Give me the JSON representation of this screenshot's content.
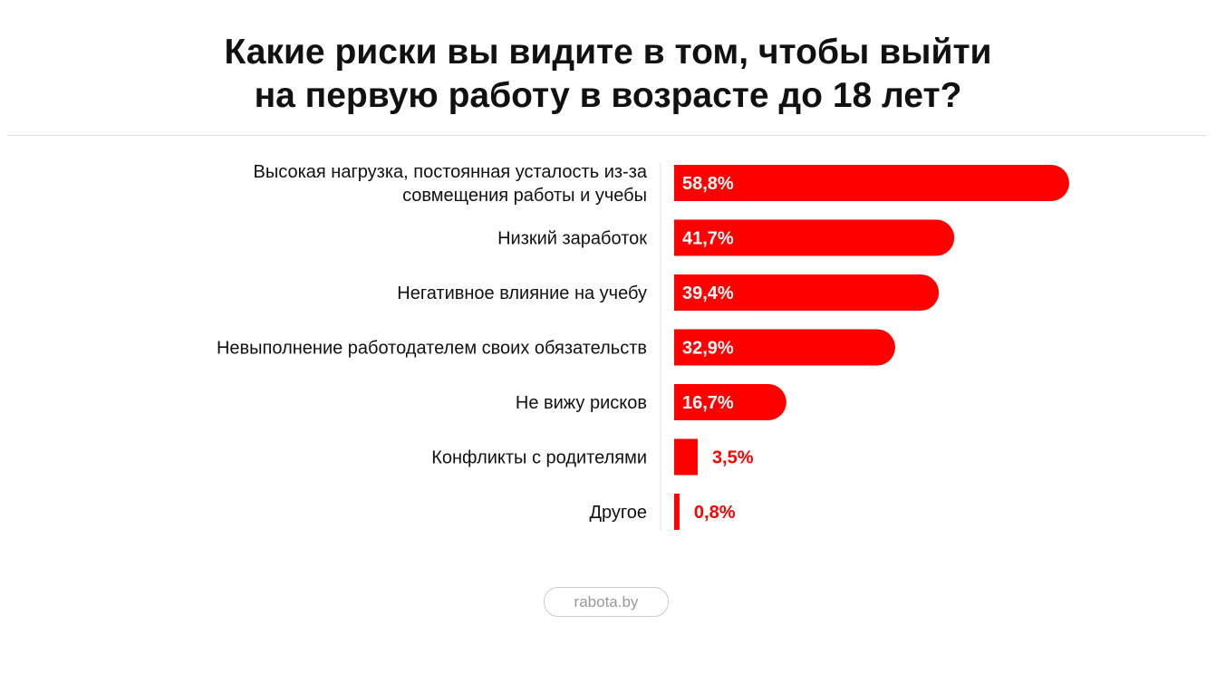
{
  "chart_data": {
    "type": "bar",
    "orientation": "horizontal",
    "title_lines": [
      "Какие риски вы видите в том, чтобы выйти",
      "на первую работу в возрасте до 18 лет?"
    ],
    "categories": [
      [
        "Высокая нагрузка, постоянная усталость из-за",
        "совмещения работы и учебы"
      ],
      [
        "Низкий заработок"
      ],
      [
        "Негативное влияние на учебу"
      ],
      [
        "Невыполнение работодателем своих обязательств"
      ],
      [
        "Не вижу рисков"
      ],
      [
        "Конфликты с родителями"
      ],
      [
        "Другое"
      ]
    ],
    "values": [
      58.8,
      41.7,
      39.4,
      32.9,
      16.7,
      3.5,
      0.8
    ],
    "value_labels": [
      "58,8%",
      "41,7%",
      "39,4%",
      "32,9%",
      "16,7%",
      "3,5%",
      "0,8%"
    ],
    "unit": "%",
    "bar_color": "#ff0000",
    "grid": false,
    "legend": "none"
  },
  "source": "rabota.by"
}
